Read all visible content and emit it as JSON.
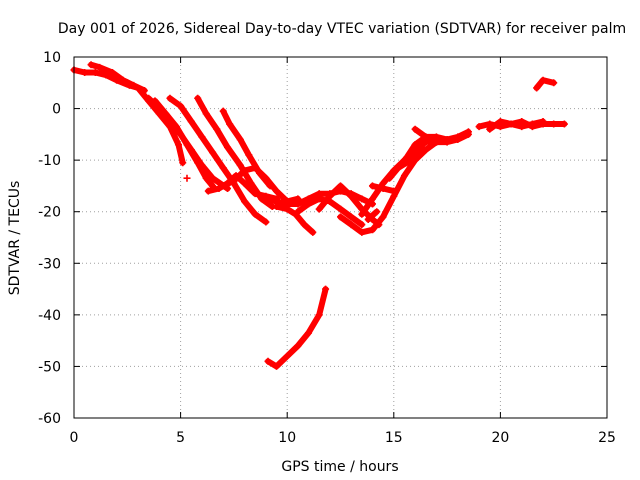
{
  "chart_data": {
    "type": "scatter",
    "title": "Day 001 of 2026, Sidereal Day-to-day VTEC variation (SDTVAR) for receiver palm",
    "xlabel": "GPS time / hours",
    "ylabel": "SDTVAR / TECUs",
    "xlim": [
      0,
      25
    ],
    "ylim": [
      -60,
      10
    ],
    "xticks": [
      0,
      5,
      10,
      15,
      20,
      25
    ],
    "yticks": [
      -60,
      -50,
      -40,
      -30,
      -20,
      -10,
      0,
      10
    ],
    "grid": true,
    "marker": "+",
    "series": [
      {
        "name": "SDTVAR tracks",
        "color": "#ff0000",
        "tracks": [
          [
            [
              0.0,
              7.5
            ],
            [
              0.5,
              7.0
            ],
            [
              1.0,
              7.0
            ],
            [
              1.5,
              6.5
            ],
            [
              2.0,
              5.5
            ],
            [
              2.6,
              4.5
            ],
            [
              3.0,
              4.0
            ]
          ],
          [
            [
              0.8,
              8.5
            ],
            [
              1.2,
              8.0
            ],
            [
              1.8,
              7.0
            ],
            [
              2.3,
              5.5
            ],
            [
              2.8,
              4.5
            ],
            [
              3.3,
              3.5
            ]
          ],
          [
            [
              2.5,
              5.0
            ],
            [
              3.0,
              4.0
            ],
            [
              3.5,
              1.5
            ],
            [
              4.0,
              -1.0
            ],
            [
              4.5,
              -3.5
            ],
            [
              4.9,
              -7.0
            ],
            [
              5.1,
              -10.5
            ]
          ],
          [
            [
              3.5,
              2.0
            ],
            [
              4.0,
              0.0
            ],
            [
              4.5,
              -2.5
            ],
            [
              5.0,
              -5.0
            ],
            [
              5.5,
              -8.0
            ],
            [
              6.0,
              -11.0
            ],
            [
              6.5,
              -13.5
            ],
            [
              7.2,
              -15.5
            ]
          ],
          [
            [
              3.8,
              1.5
            ],
            [
              4.3,
              -1.0
            ],
            [
              4.8,
              -3.5
            ],
            [
              5.3,
              -7.0
            ],
            [
              5.8,
              -10.5
            ],
            [
              6.2,
              -13.5
            ],
            [
              6.5,
              -15.0
            ]
          ],
          [
            [
              4.5,
              2.0
            ],
            [
              5.0,
              0.5
            ],
            [
              5.5,
              -2.5
            ],
            [
              6.0,
              -5.5
            ],
            [
              6.5,
              -8.5
            ],
            [
              7.0,
              -11.5
            ],
            [
              7.5,
              -14.5
            ],
            [
              8.0,
              -18.0
            ],
            [
              8.5,
              -20.5
            ],
            [
              9.0,
              -22.0
            ]
          ],
          [
            [
              5.8,
              2.0
            ],
            [
              6.2,
              -1.0
            ],
            [
              6.7,
              -4.0
            ],
            [
              7.2,
              -7.5
            ],
            [
              7.8,
              -11.0
            ],
            [
              8.3,
              -14.5
            ],
            [
              8.8,
              -17.5
            ],
            [
              9.3,
              -19.0
            ]
          ],
          [
            [
              7.0,
              -0.5
            ],
            [
              7.3,
              -3.0
            ],
            [
              7.8,
              -6.0
            ],
            [
              8.2,
              -9.0
            ],
            [
              8.7,
              -12.5
            ],
            [
              9.2,
              -15.0
            ]
          ],
          [
            [
              6.3,
              -16.0
            ],
            [
              6.8,
              -15.5
            ],
            [
              7.2,
              -14.5
            ],
            [
              7.6,
              -13.0
            ],
            [
              8.0,
              -14.5
            ],
            [
              8.5,
              -16.5
            ],
            [
              9.0,
              -17.0
            ],
            [
              9.5,
              -17.5
            ]
          ],
          [
            [
              7.0,
              -15.0
            ],
            [
              7.5,
              -14.0
            ],
            [
              8.0,
              -12.0
            ],
            [
              8.5,
              -11.5
            ],
            [
              9.0,
              -13.5
            ],
            [
              9.5,
              -16.0
            ],
            [
              10.0,
              -18.0
            ],
            [
              10.5,
              -17.5
            ]
          ],
          [
            [
              9.0,
              -17.5
            ],
            [
              9.5,
              -18.0
            ],
            [
              10.0,
              -18.5
            ],
            [
              10.5,
              -18.5
            ],
            [
              11.0,
              -17.5
            ],
            [
              11.5,
              -16.5
            ],
            [
              12.0,
              -16.5
            ],
            [
              12.5,
              -16.0
            ],
            [
              13.0,
              -16.5
            ],
            [
              13.5,
              -17.5
            ],
            [
              14.0,
              -18.5
            ]
          ],
          [
            [
              9.5,
              -19.0
            ],
            [
              10.0,
              -19.5
            ],
            [
              10.4,
              -20.5
            ],
            [
              10.8,
              -22.5
            ],
            [
              11.2,
              -24.0
            ]
          ],
          [
            [
              10.5,
              -20.0
            ],
            [
              11.0,
              -18.5
            ],
            [
              11.5,
              -17.5
            ],
            [
              12.0,
              -18.0
            ],
            [
              12.5,
              -19.5
            ],
            [
              13.0,
              -21.0
            ],
            [
              13.5,
              -22.5
            ]
          ],
          [
            [
              11.5,
              -19.5
            ],
            [
              12.0,
              -17.0
            ],
            [
              12.5,
              -15.0
            ],
            [
              13.0,
              -17.0
            ],
            [
              13.5,
              -19.5
            ],
            [
              14.0,
              -21.5
            ],
            [
              14.3,
              -22.5
            ]
          ],
          [
            [
              12.5,
              -21.0
            ],
            [
              13.0,
              -22.5
            ],
            [
              13.5,
              -24.0
            ],
            [
              14.0,
              -23.5
            ],
            [
              14.5,
              -21.0
            ],
            [
              15.0,
              -17.0
            ],
            [
              15.5,
              -13.0
            ],
            [
              16.0,
              -10.0
            ],
            [
              16.5,
              -8.0
            ],
            [
              17.0,
              -6.5
            ]
          ],
          [
            [
              13.5,
              -20.5
            ],
            [
              14.0,
              -17.5
            ],
            [
              14.5,
              -14.5
            ],
            [
              15.0,
              -12.0
            ],
            [
              15.5,
              -10.0
            ],
            [
              16.0,
              -8.0
            ],
            [
              16.5,
              -6.5
            ],
            [
              17.0,
              -6.0
            ]
          ],
          [
            [
              14.8,
              -13.5
            ],
            [
              15.2,
              -11.5
            ],
            [
              15.6,
              -9.5
            ],
            [
              16.0,
              -7.0
            ],
            [
              16.5,
              -5.5
            ],
            [
              17.0,
              -5.5
            ],
            [
              17.5,
              -6.0
            ],
            [
              18.0,
              -5.5
            ],
            [
              18.5,
              -4.5
            ]
          ],
          [
            [
              15.2,
              -11.5
            ],
            [
              15.6,
              -10.5
            ],
            [
              16.0,
              -9.0
            ],
            [
              16.3,
              -7.5
            ]
          ],
          [
            [
              14.0,
              -15.0
            ],
            [
              14.5,
              -15.5
            ],
            [
              15.0,
              -16.0
            ]
          ],
          [
            [
              16.0,
              -4.0
            ],
            [
              16.5,
              -5.5
            ],
            [
              17.0,
              -6.5
            ],
            [
              17.5,
              -6.5
            ],
            [
              18.0,
              -6.0
            ],
            [
              18.5,
              -5.0
            ]
          ],
          [
            [
              19.0,
              -3.5
            ],
            [
              19.5,
              -3.0
            ],
            [
              20.0,
              -3.5
            ],
            [
              20.5,
              -3.0
            ],
            [
              21.0,
              -2.5
            ],
            [
              21.5,
              -3.5
            ],
            [
              22.0,
              -3.0
            ],
            [
              22.5,
              -3.0
            ],
            [
              23.0,
              -3.0
            ]
          ],
          [
            [
              19.5,
              -4.0
            ],
            [
              20.0,
              -2.5
            ],
            [
              20.5,
              -3.0
            ],
            [
              21.0,
              -3.5
            ],
            [
              21.5,
              -3.0
            ],
            [
              22.0,
              -2.5
            ]
          ],
          [
            [
              21.7,
              4.0
            ],
            [
              22.0,
              5.5
            ],
            [
              22.5,
              5.0
            ]
          ],
          [
            [
              9.1,
              -49.0
            ],
            [
              9.5,
              -50.0
            ],
            [
              10.0,
              -48.0
            ],
            [
              10.5,
              -46.0
            ],
            [
              11.0,
              -43.5
            ],
            [
              11.5,
              -40.0
            ],
            [
              11.8,
              -35.0
            ]
          ],
          [
            [
              5.3,
              -13.5
            ]
          ],
          [
            [
              13.8,
              -21.5
            ],
            [
              14.2,
              -20.0
            ]
          ]
        ]
      }
    ]
  }
}
